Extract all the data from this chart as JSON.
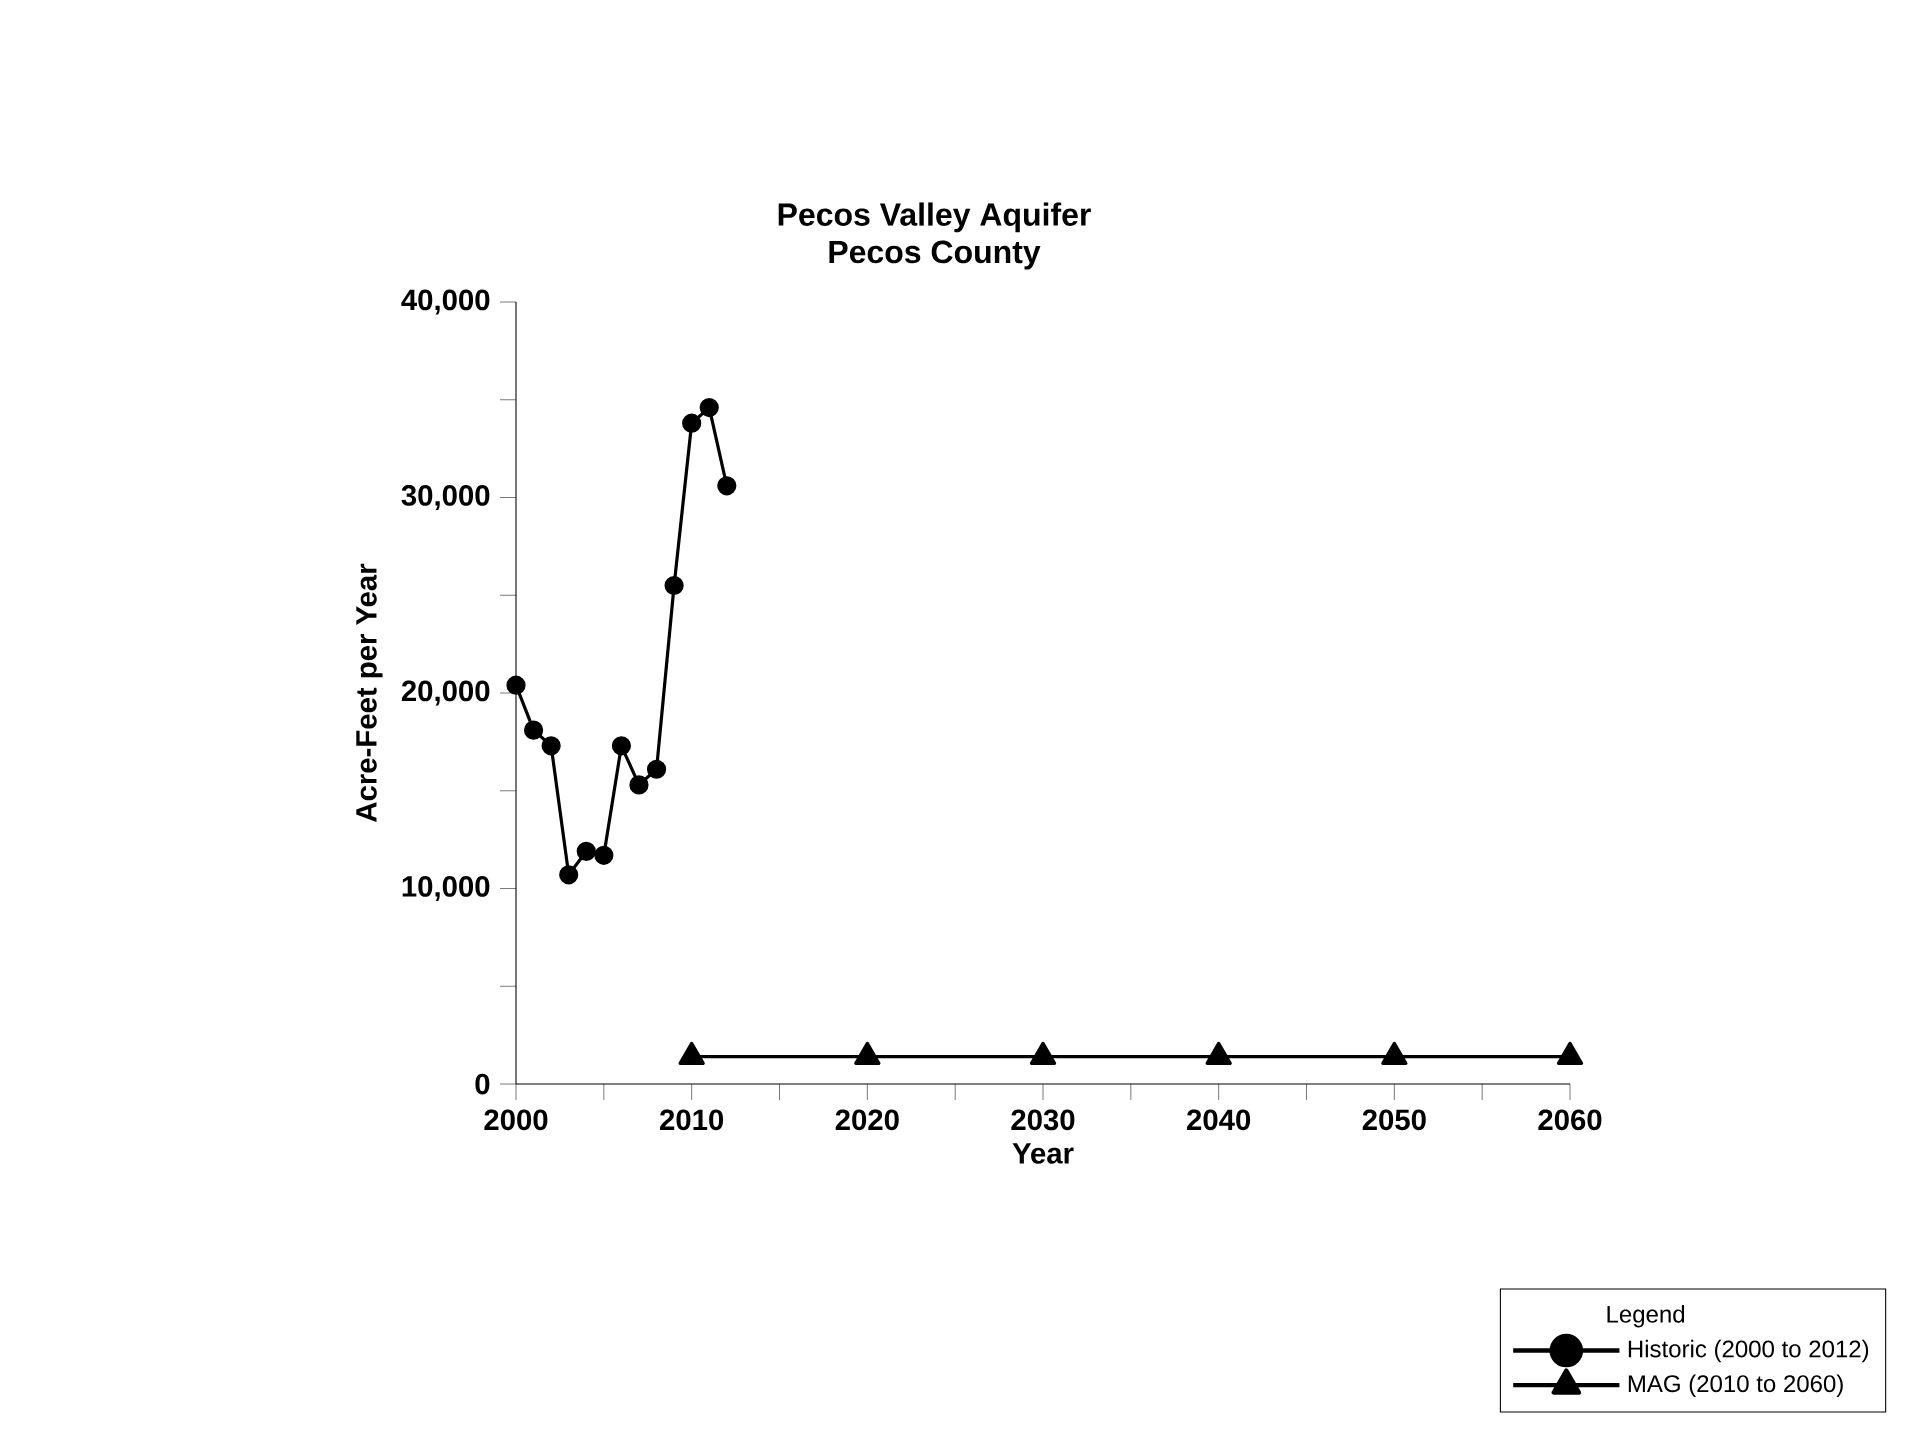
{
  "chart_data": {
    "type": "line",
    "title": "Pecos Valley Aquifer",
    "subtitle": "Pecos County",
    "xlabel": "Year",
    "ylabel": "Acre-Feet per Year",
    "legend_title": "Legend",
    "legend": "bottom right",
    "xlim": [
      2000,
      2060
    ],
    "ylim": [
      0,
      40000
    ],
    "xticks": [
      2000,
      2010,
      2020,
      2030,
      2040,
      2050,
      2060
    ],
    "yticks": [
      {
        "value": 0,
        "label": "0"
      },
      {
        "value": 10000,
        "label": "10,000"
      },
      {
        "value": 20000,
        "label": "20,000"
      },
      {
        "value": 30000,
        "label": "30,000"
      },
      {
        "value": 40000,
        "label": "40,000"
      }
    ],
    "series": [
      {
        "name": "Historic (2000 to 2012)",
        "color": "#000000",
        "marker": "circle",
        "x": [
          2000,
          2001,
          2002,
          2003,
          2004,
          2005,
          2006,
          2007,
          2008,
          2009,
          2010,
          2011,
          2012
        ],
        "values": [
          20400,
          18100,
          17300,
          10700,
          11900,
          11700,
          17300,
          15300,
          16100,
          25500,
          33800,
          34600,
          30600
        ]
      },
      {
        "name": "MAG (2010 to 2060)",
        "color": "#000000",
        "marker": "triangle",
        "x": [
          2010,
          2020,
          2030,
          2040,
          2050,
          2060
        ],
        "values": [
          1400,
          1400,
          1400,
          1400,
          1400,
          1400
        ]
      }
    ]
  }
}
